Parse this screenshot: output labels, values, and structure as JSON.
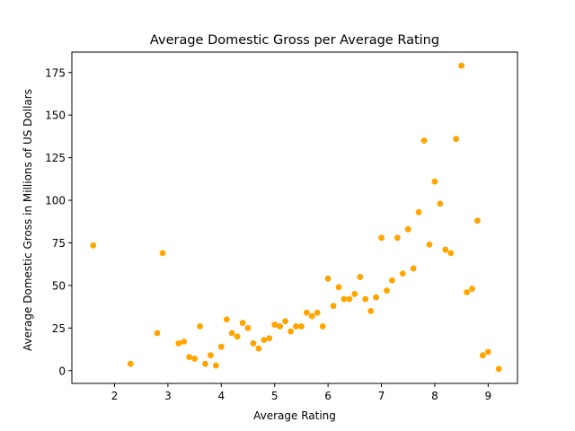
{
  "chart_data": {
    "type": "scatter",
    "title": "Average Domestic Gross per Average Rating",
    "xlabel": "Average Rating",
    "ylabel": "Average Domestic Gross in Millions of US Dollars",
    "xlim": [
      1.2,
      9.55
    ],
    "ylim": [
      -7.5,
      187
    ],
    "xticks": [
      2,
      3,
      4,
      5,
      6,
      7,
      8,
      9
    ],
    "yticks": [
      0,
      25,
      50,
      75,
      100,
      125,
      150,
      175
    ],
    "grid": false,
    "legend": "none",
    "marker_color": "#ffa500",
    "series": [
      {
        "points": [
          [
            1.6,
            73.5
          ],
          [
            2.3,
            4
          ],
          [
            2.8,
            22
          ],
          [
            2.9,
            69
          ],
          [
            3.2,
            16
          ],
          [
            3.3,
            17
          ],
          [
            3.4,
            8
          ],
          [
            3.5,
            7
          ],
          [
            3.6,
            26
          ],
          [
            3.7,
            4
          ],
          [
            3.8,
            9
          ],
          [
            3.9,
            3
          ],
          [
            4.0,
            14
          ],
          [
            4.1,
            30
          ],
          [
            4.2,
            22
          ],
          [
            4.3,
            20
          ],
          [
            4.4,
            28
          ],
          [
            4.5,
            25
          ],
          [
            4.6,
            16
          ],
          [
            4.7,
            13
          ],
          [
            4.8,
            18
          ],
          [
            4.9,
            19
          ],
          [
            5.0,
            27
          ],
          [
            5.1,
            26
          ],
          [
            5.2,
            29
          ],
          [
            5.3,
            23
          ],
          [
            5.4,
            26
          ],
          [
            5.5,
            26
          ],
          [
            5.6,
            34
          ],
          [
            5.7,
            32
          ],
          [
            5.8,
            34
          ],
          [
            5.9,
            26
          ],
          [
            6.0,
            54
          ],
          [
            6.1,
            38
          ],
          [
            6.2,
            49
          ],
          [
            6.3,
            42
          ],
          [
            6.4,
            42
          ],
          [
            6.5,
            45
          ],
          [
            6.6,
            55
          ],
          [
            6.7,
            42
          ],
          [
            6.8,
            35
          ],
          [
            6.9,
            43
          ],
          [
            7.0,
            78
          ],
          [
            7.1,
            47
          ],
          [
            7.2,
            53
          ],
          [
            7.3,
            78
          ],
          [
            7.4,
            57
          ],
          [
            7.5,
            83
          ],
          [
            7.6,
            60
          ],
          [
            7.7,
            93
          ],
          [
            7.8,
            135
          ],
          [
            7.9,
            74
          ],
          [
            8.0,
            111
          ],
          [
            8.1,
            98
          ],
          [
            8.2,
            71
          ],
          [
            8.3,
            69
          ],
          [
            8.4,
            136
          ],
          [
            8.5,
            179
          ],
          [
            8.6,
            46
          ],
          [
            8.7,
            48
          ],
          [
            8.8,
            88
          ],
          [
            8.9,
            9
          ],
          [
            9.0,
            11
          ],
          [
            9.2,
            1
          ]
        ]
      }
    ]
  }
}
